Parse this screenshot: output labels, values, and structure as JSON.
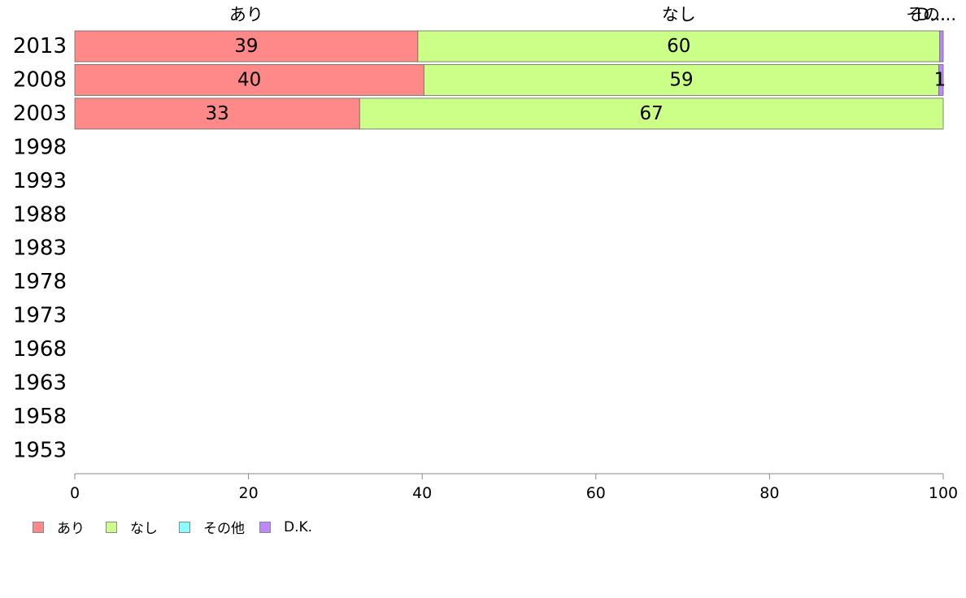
{
  "chart_data": {
    "type": "bar",
    "orientation": "horizontal",
    "stacked": true,
    "categories": [
      "2013",
      "2008",
      "2003",
      "1998",
      "1993",
      "1988",
      "1983",
      "1978",
      "1973",
      "1968",
      "1963",
      "1958",
      "1953"
    ],
    "series": [
      {
        "name": "あり",
        "color": "#ff8888",
        "values": [
          39.5,
          40.2,
          32.8,
          null,
          null,
          null,
          null,
          null,
          null,
          null,
          null,
          null,
          null
        ]
      },
      {
        "name": "なし",
        "color": "#ccff88",
        "values": [
          60.1,
          59.3,
          67.2,
          null,
          null,
          null,
          null,
          null,
          null,
          null,
          null,
          null,
          null
        ]
      },
      {
        "name": "その他",
        "color": "#88ffff",
        "values": [
          0,
          0,
          0,
          null,
          null,
          null,
          null,
          null,
          null,
          null,
          null,
          null,
          null
        ]
      },
      {
        "name": "D.K.",
        "color": "#bb88ff",
        "values": [
          0.4,
          0.5,
          0,
          null,
          null,
          null,
          null,
          null,
          null,
          null,
          null,
          null,
          null
        ]
      }
    ],
    "data_labels": {
      "2013": [
        "39",
        "60",
        "",
        ""
      ],
      "2008": [
        "40",
        "59",
        "",
        "1"
      ],
      "2003": [
        "33",
        "67",
        "",
        ""
      ]
    },
    "top_labels": [
      "あり",
      "なし",
      "その...",
      "D..."
    ],
    "xlim": [
      0,
      100
    ],
    "xticks": [
      "0",
      "20",
      "40",
      "60",
      "80",
      "100"
    ],
    "grid": false,
    "legend_position": "bottom-left"
  }
}
